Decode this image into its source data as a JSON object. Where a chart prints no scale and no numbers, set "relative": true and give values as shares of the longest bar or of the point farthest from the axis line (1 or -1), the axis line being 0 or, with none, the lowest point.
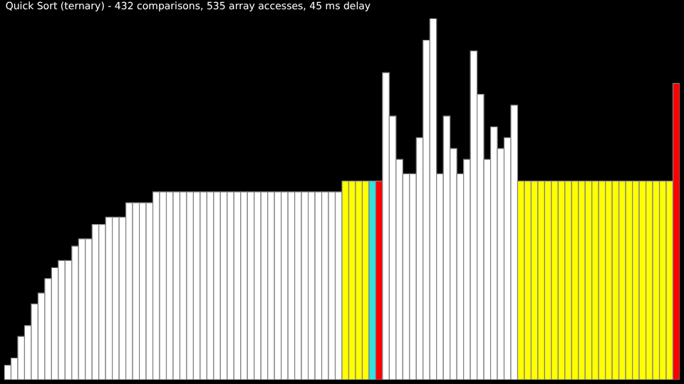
{
  "chart_data": {
    "type": "bar",
    "title": "Quick Sort (ternary) - 432 comparisons, 535 array accesses, 45 ms delay",
    "relative": true,
    "categories": [
      null,
      null,
      null,
      null,
      null,
      null,
      null,
      null,
      null,
      null,
      null,
      null,
      null,
      null,
      null,
      null,
      null,
      null,
      null,
      null,
      null,
      null,
      null,
      null,
      null,
      null,
      null,
      null,
      null,
      null,
      null,
      null,
      null,
      null,
      null,
      null,
      null,
      null,
      null,
      null,
      null,
      null,
      null,
      null,
      null,
      null,
      null,
      null,
      null,
      null,
      null,
      null,
      null,
      null,
      null,
      null,
      null,
      null,
      null,
      null,
      null,
      null,
      null,
      null,
      null,
      null,
      null,
      null,
      null,
      null,
      null,
      null,
      null,
      null,
      null,
      null,
      null,
      null,
      null,
      null,
      null,
      null,
      null,
      null,
      null,
      null,
      null,
      null,
      null,
      null,
      null,
      null,
      null,
      null,
      null,
      null,
      null,
      null,
      null,
      null
    ],
    "values": [
      0.04,
      0.06,
      0.12,
      0.15,
      0.21,
      0.24,
      0.28,
      0.31,
      0.33,
      0.33,
      0.37,
      0.39,
      0.39,
      0.43,
      0.43,
      0.45,
      0.45,
      0.45,
      0.49,
      0.49,
      0.49,
      0.49,
      0.52,
      0.52,
      0.52,
      0.52,
      0.52,
      0.52,
      0.52,
      0.52,
      0.52,
      0.52,
      0.52,
      0.52,
      0.52,
      0.52,
      0.52,
      0.52,
      0.52,
      0.52,
      0.52,
      0.52,
      0.52,
      0.52,
      0.52,
      0.52,
      0.52,
      0.52,
      0.52,
      0.52,
      0.55,
      0.55,
      0.55,
      0.55,
      0.55,
      0.55,
      0.85,
      0.73,
      0.61,
      0.57,
      0.57,
      0.67,
      0.94,
      1,
      0.57,
      0.73,
      0.64,
      0.57,
      0.61,
      0.91,
      0.79,
      0.61,
      0.7,
      0.64,
      0.67,
      0.76,
      0.55,
      0.55,
      0.55,
      0.55,
      0.55,
      0.55,
      0.55,
      0.55,
      0.55,
      0.55,
      0.55,
      0.55,
      0.55,
      0.55,
      0.55,
      0.55,
      0.55,
      0.55,
      0.55,
      0.55,
      0.55,
      0.55,
      0.55,
      0.82
    ],
    "colors": [
      "#ffffff",
      "#ffffff",
      "#ffffff",
      "#ffffff",
      "#ffffff",
      "#ffffff",
      "#ffffff",
      "#ffffff",
      "#ffffff",
      "#ffffff",
      "#ffffff",
      "#ffffff",
      "#ffffff",
      "#ffffff",
      "#ffffff",
      "#ffffff",
      "#ffffff",
      "#ffffff",
      "#ffffff",
      "#ffffff",
      "#ffffff",
      "#ffffff",
      "#ffffff",
      "#ffffff",
      "#ffffff",
      "#ffffff",
      "#ffffff",
      "#ffffff",
      "#ffffff",
      "#ffffff",
      "#ffffff",
      "#ffffff",
      "#ffffff",
      "#ffffff",
      "#ffffff",
      "#ffffff",
      "#ffffff",
      "#ffffff",
      "#ffffff",
      "#ffffff",
      "#ffffff",
      "#ffffff",
      "#ffffff",
      "#ffffff",
      "#ffffff",
      "#ffffff",
      "#ffffff",
      "#ffffff",
      "#ffffff",
      "#ffffff",
      "#ffff00",
      "#ffff00",
      "#ffff00",
      "#ffff00",
      "#33e0e0",
      "#ff0000",
      "#ffffff",
      "#ffffff",
      "#ffffff",
      "#ffffff",
      "#ffffff",
      "#ffffff",
      "#ffffff",
      "#ffffff",
      "#ffffff",
      "#ffffff",
      "#ffffff",
      "#ffffff",
      "#ffffff",
      "#ffffff",
      "#ffffff",
      "#ffffff",
      "#ffffff",
      "#ffffff",
      "#ffffff",
      "#ffffff",
      "#ffff00",
      "#ffff00",
      "#ffff00",
      "#ffff00",
      "#ffff00",
      "#ffff00",
      "#ffff00",
      "#ffff00",
      "#ffff00",
      "#ffff00",
      "#ffff00",
      "#ffff00",
      "#ffff00",
      "#ffff00",
      "#ffff00",
      "#ffff00",
      "#ffff00",
      "#ffff00",
      "#ffff00",
      "#ffff00",
      "#ffff00",
      "#ffff00",
      "#ffff00",
      "#ff0000"
    ]
  }
}
